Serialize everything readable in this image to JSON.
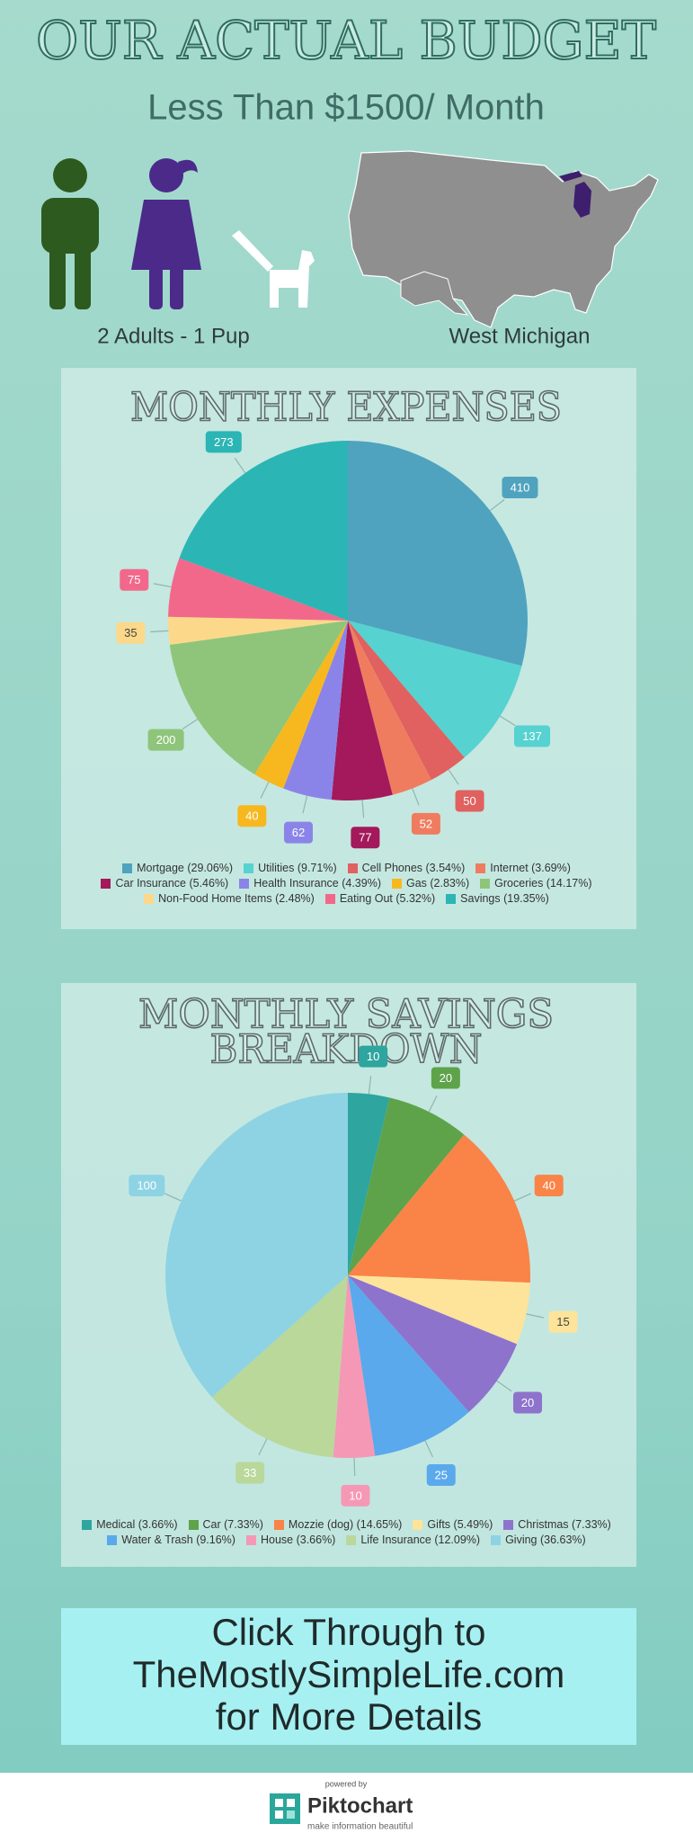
{
  "header": {
    "title": "OUR ACTUAL BUDGET",
    "subtitle": "Less Than $1500/ Month",
    "household": "2 Adults - 1 Pup",
    "location": "West Michigan"
  },
  "chart_data": [
    {
      "type": "pie",
      "title": "MONTHLY EXPENSES",
      "categories": [
        "Mortgage (29.06%)",
        "Utilities (9.71%)",
        "Cell Phones (3.54%)",
        "Internet (3.69%)",
        "Car Insurance (5.46%)",
        "Health Insurance (4.39%)",
        "Gas (2.83%)",
        "Groceries (14.17%)",
        "Non-Food Home Items (2.48%)",
        "Eating Out (5.32%)",
        "Savings (19.35%)"
      ],
      "values": [
        410,
        137,
        50,
        52,
        77,
        62,
        40,
        200,
        35,
        75,
        273
      ],
      "colors": [
        "#4fa3be",
        "#56d2d0",
        "#e0615f",
        "#f07c5f",
        "#a3195b",
        "#8b84e8",
        "#f7b81f",
        "#8fc57a",
        "#fcd98a",
        "#f2688b",
        "#2cb5b5"
      ]
    },
    {
      "type": "pie",
      "title": [
        "MONTHLY SAVINGS",
        "BREAKDOWN"
      ],
      "categories": [
        "Medical (3.66%)",
        "Car (7.33%)",
        "Mozzie (dog) (14.65%)",
        "Gifts (5.49%)",
        "Christmas (7.33%)",
        "Water & Trash (9.16%)",
        "House (3.66%)",
        "Life Insurance (12.09%)",
        "Giving (36.63%)"
      ],
      "values": [
        10,
        20,
        40,
        15,
        20,
        25,
        10,
        33,
        100
      ],
      "colors": [
        "#2ea59f",
        "#5ea34a",
        "#fa8348",
        "#fde49a",
        "#8e73cd",
        "#5aa9ec",
        "#f598b5",
        "#b9d89a",
        "#8ed3e3"
      ]
    }
  ],
  "cta": [
    "Click Through to",
    "TheMostlySimpleLife.com",
    "for More Details"
  ],
  "footer": {
    "powered": "powered by",
    "brand": "Piktochart",
    "tagline": "make information beautiful"
  }
}
